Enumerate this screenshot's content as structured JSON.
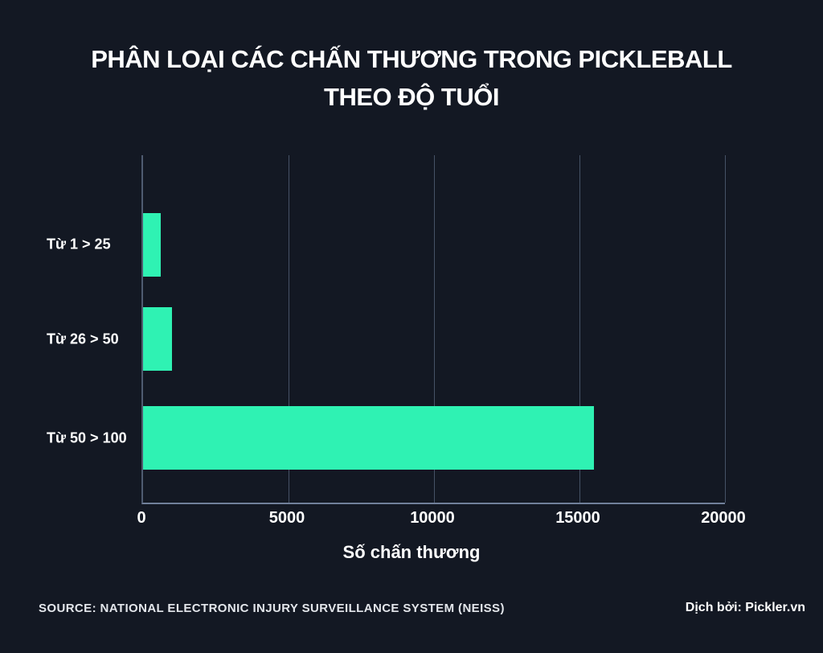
{
  "title": {
    "line1": "PHÂN LOẠI CÁC CHẤN THƯƠNG TRONG PICKLEBALL",
    "line2": "THEO ĐỘ TUỔI"
  },
  "chart_data": {
    "type": "bar",
    "orientation": "horizontal",
    "title": "PHÂN LOẠI CÁC CHẤN THƯƠNG TRONG PICKLEBALL THEO ĐỘ TUỔI",
    "categories": [
      "Từ 1 > 25",
      "Từ 26 > 50",
      "Từ 50 > 100"
    ],
    "values": [
      600,
      1000,
      15500
    ],
    "xlabel": "Số chấn thương",
    "ylabel": "",
    "xlim": [
      0,
      20000
    ],
    "xticks": [
      0,
      5000,
      10000,
      15000,
      20000
    ],
    "grid": "vertical-gridlines-at-xticks",
    "legend": "none",
    "bar_color": "#2FF2B3",
    "background_color": "#131823",
    "text_color": "#FFFFFF",
    "gridline_color": "#465266"
  },
  "footer": {
    "source": "SOURCE: NATIONAL ELECTRONIC INJURY SURVEILLANCE SYSTEM (NEISS)",
    "credit": "Dịch bởi: Pickler.vn"
  }
}
